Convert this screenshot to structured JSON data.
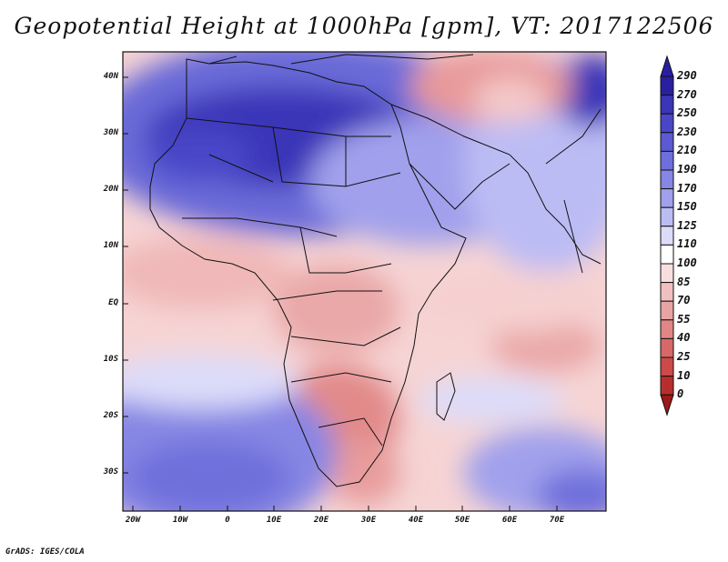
{
  "title": "Geopotential Height at 1000hPa [gpm], VT: 2017122506",
  "footer": "GrADS: IGES/COLA",
  "map": {
    "lat_labels": [
      "40N",
      "30N",
      "20N",
      "10N",
      "EQ",
      "10S",
      "20S",
      "30S"
    ],
    "lon_labels": [
      "20W",
      "10W",
      "0",
      "10E",
      "20E",
      "30E",
      "40E",
      "50E",
      "60E",
      "70E"
    ]
  },
  "colorbar": {
    "labels": [
      "290",
      "270",
      "250",
      "230",
      "210",
      "190",
      "170",
      "150",
      "125",
      "110",
      "100",
      "85",
      "70",
      "55",
      "40",
      "25",
      "10",
      "0"
    ],
    "colors": [
      "#2a1fa0",
      "#3b35b8",
      "#4a46c8",
      "#5b5ad2",
      "#6f6fdc",
      "#8686e4",
      "#a0a0ec",
      "#bcbcf4",
      "#dcdcfa",
      "#ffffff",
      "#f8dede",
      "#f0c0c0",
      "#e8a4a4",
      "#e08686",
      "#d86868",
      "#cc4a4a",
      "#b82e2e",
      "#9e1818"
    ]
  }
}
